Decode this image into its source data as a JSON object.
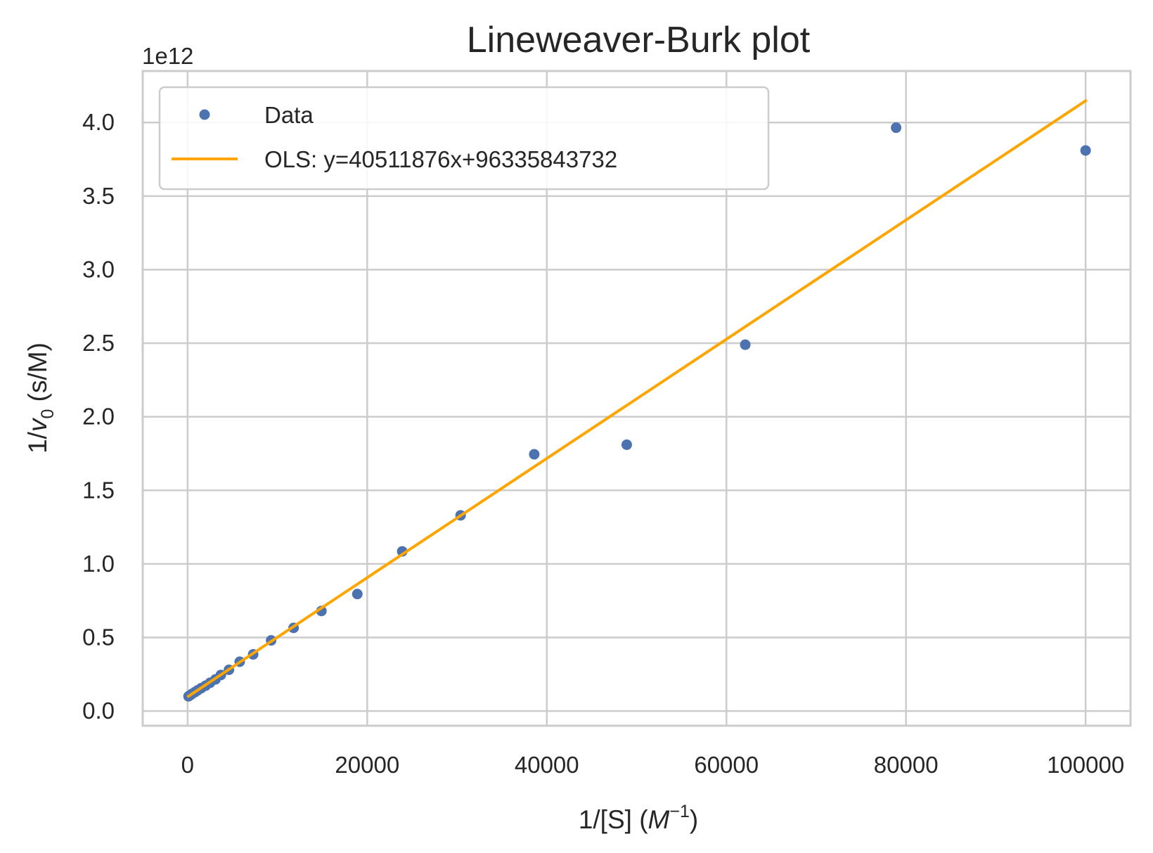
{
  "chart_data": {
    "type": "scatter",
    "title": "Lineweaver-Burk plot",
    "xlabel_text": "1/[S] (",
    "xlabel_math_base": "M",
    "xlabel_math_sup": "−1",
    "xlabel_tail": ")",
    "ylabel_text": "1/",
    "ylabel_math_base": "v",
    "ylabel_math_sub": "0",
    "ylabel_tail": " (s/M)",
    "y_offset_label": "1e12",
    "xlim": [
      -5000,
      105000
    ],
    "ylim": [
      -0.1,
      4.35
    ],
    "y_scale_factor": 1000000000000.0,
    "xticks": [
      0,
      20000,
      40000,
      60000,
      80000,
      100000
    ],
    "xtick_labels": [
      "0",
      "20000",
      "40000",
      "60000",
      "80000",
      "100000"
    ],
    "yticks": [
      0.0,
      0.5,
      1.0,
      1.5,
      2.0,
      2.5,
      3.0,
      3.5,
      4.0
    ],
    "ytick_labels": [
      "0.0",
      "0.5",
      "1.0",
      "1.5",
      "2.0",
      "2.5",
      "3.0",
      "3.5",
      "4.0"
    ],
    "grid": true,
    "legend_position": "upper-left",
    "series": [
      {
        "name": "Data",
        "kind": "scatter",
        "color": "#4c72b0",
        "points": [
          [
            100,
            0.1
          ],
          [
            300,
            0.108
          ],
          [
            500,
            0.117
          ],
          [
            800,
            0.128
          ],
          [
            1100,
            0.14
          ],
          [
            1500,
            0.155
          ],
          [
            2000,
            0.172
          ],
          [
            2500,
            0.192
          ],
          [
            3100,
            0.215
          ],
          [
            3700,
            0.245
          ],
          [
            4600,
            0.28
          ],
          [
            5800,
            0.335
          ],
          [
            7300,
            0.385
          ],
          [
            9300,
            0.48
          ],
          [
            11800,
            0.565
          ],
          [
            14900,
            0.68
          ],
          [
            18900,
            0.795
          ],
          [
            23900,
            1.085
          ],
          [
            30400,
            1.33
          ],
          [
            38600,
            1.745
          ],
          [
            48900,
            1.81
          ],
          [
            62100,
            2.49
          ],
          [
            78900,
            3.965
          ],
          [
            100000,
            3.81
          ]
        ]
      },
      {
        "name": "OLS: y=40511876x+96335843732",
        "kind": "line",
        "color": "#ffa500",
        "slope": 40511876,
        "intercept": 96335843732,
        "x_range": [
          100,
          100000
        ]
      }
    ]
  }
}
